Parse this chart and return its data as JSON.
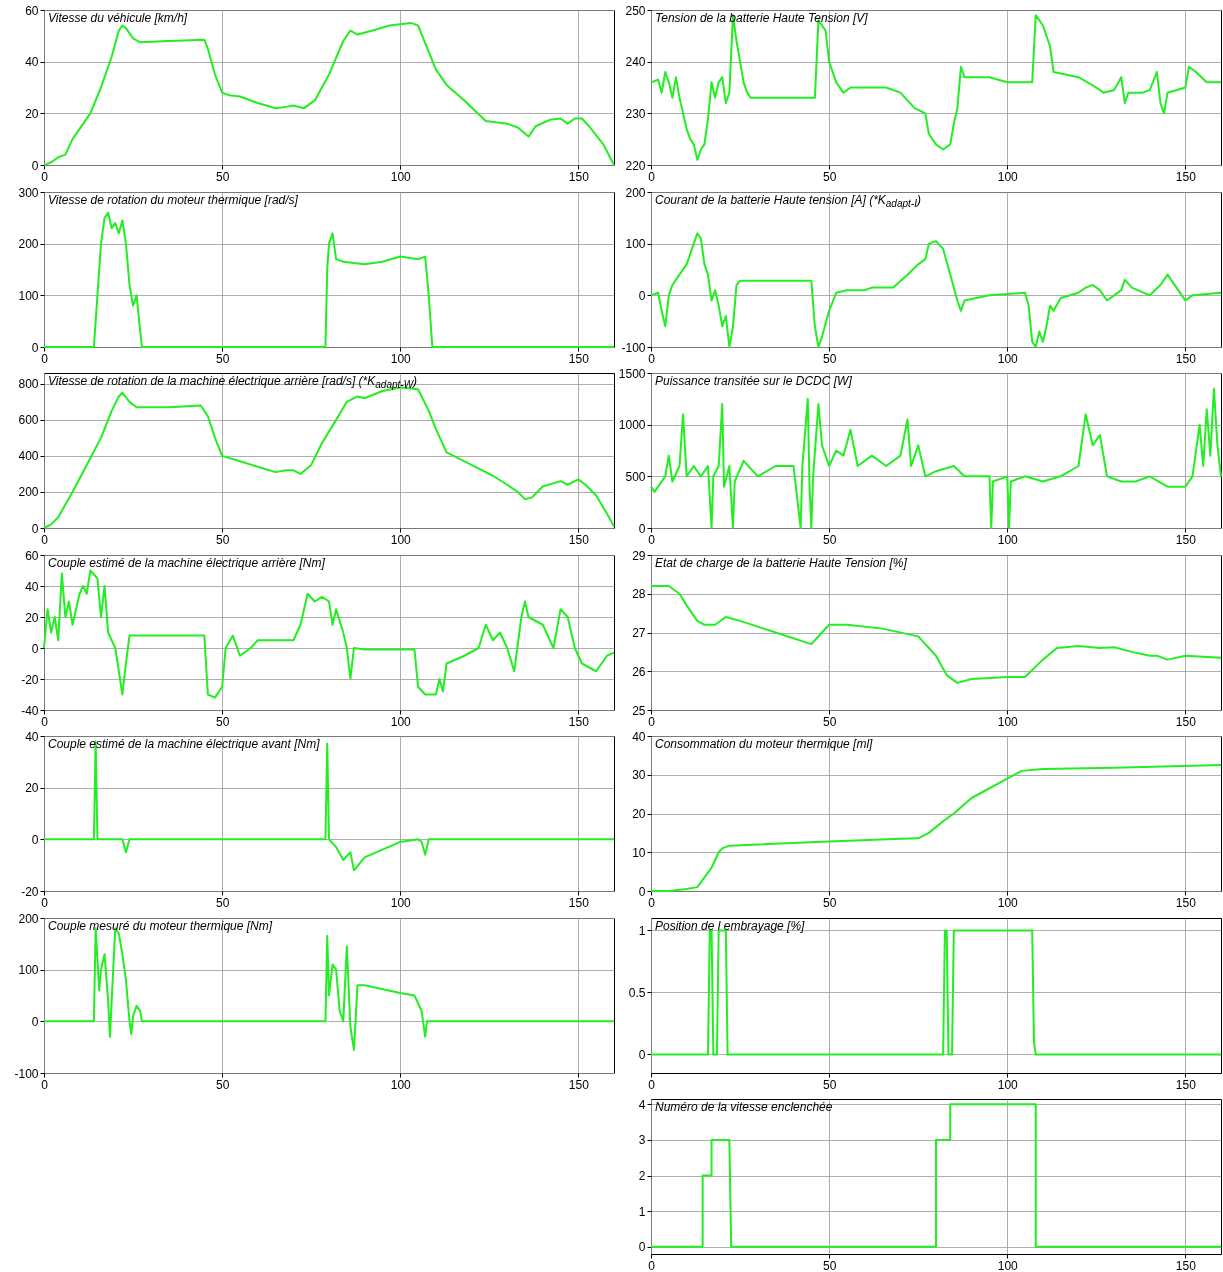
{
  "chart_data": [
    {
      "type": "line",
      "title": "Vitesse du véhicule [km/h]",
      "color": "#22ee22",
      "xlim": [
        0,
        160
      ],
      "xticks": [
        0,
        50,
        100,
        150
      ],
      "ylim": [
        0,
        60
      ],
      "yticks": [
        0,
        20,
        40,
        60
      ],
      "grid": true,
      "x": [
        0,
        2,
        4,
        6,
        8,
        10,
        13,
        16,
        19,
        21,
        22,
        23,
        25,
        27,
        35,
        45,
        46,
        48,
        50,
        52,
        55,
        60,
        65,
        68,
        70,
        73,
        76,
        80,
        84,
        86,
        88,
        92,
        97,
        103,
        105,
        110,
        113,
        118,
        124,
        130,
        133,
        136,
        138,
        142,
        145,
        147,
        149,
        151,
        153,
        157,
        160
      ],
      "values": [
        0,
        1,
        3,
        4,
        10,
        14,
        20,
        30,
        42,
        52,
        54,
        53,
        49,
        47.5,
        48,
        48.5,
        45,
        35,
        28,
        27,
        26.5,
        24,
        22,
        22.5,
        23,
        22,
        25,
        35,
        48,
        52,
        50.5,
        52,
        54,
        55,
        54,
        37,
        31,
        25,
        17,
        16,
        14.5,
        11,
        15,
        17.5,
        18,
        16,
        18,
        18,
        15,
        8,
        0
      ]
    },
    {
      "type": "line",
      "title": "Tension de la batterie Haute Tension [V]",
      "color": "#22ee22",
      "xlim": [
        0,
        160
      ],
      "xticks": [
        0,
        50,
        100,
        150
      ],
      "ylim": [
        220,
        250
      ],
      "yticks": [
        220,
        230,
        240,
        250
      ],
      "grid": true,
      "x": [
        0,
        2,
        3,
        4,
        5,
        6,
        7,
        8,
        9,
        10,
        11,
        12,
        13,
        14,
        15,
        16,
        17,
        18,
        19,
        20,
        21,
        22,
        23,
        24,
        25,
        26,
        27,
        28,
        35,
        45,
        46,
        47,
        48,
        49,
        50,
        52,
        54,
        56,
        60,
        66,
        70,
        74,
        77,
        78,
        80,
        82,
        84,
        85,
        86,
        87,
        88,
        95,
        100,
        105,
        107,
        108,
        110,
        112,
        113,
        120,
        125,
        127,
        130,
        132,
        133,
        134,
        138,
        140,
        142,
        143,
        144,
        145,
        150,
        151,
        153,
        156,
        160
      ],
      "values": [
        236,
        236.5,
        234,
        238,
        236,
        233,
        237,
        233,
        230,
        227,
        225,
        224,
        221,
        223,
        224,
        229,
        236,
        233,
        236,
        237,
        232,
        234,
        249,
        244,
        240,
        236,
        234,
        233,
        233,
        233,
        233,
        248,
        247,
        246,
        240,
        236,
        234,
        235,
        235,
        235,
        234,
        231,
        230,
        226,
        224,
        223,
        224,
        228,
        231,
        239,
        237,
        237,
        236,
        236,
        236,
        249,
        247,
        243,
        238,
        237,
        235,
        234,
        234.5,
        237,
        232,
        234,
        234,
        234.5,
        238,
        232,
        230,
        234,
        235,
        239,
        238,
        236,
        236
      ]
    },
    {
      "type": "line",
      "title": "Vitesse de rotation du moteur thermique [rad/s]",
      "color": "#22ee22",
      "xlim": [
        0,
        160
      ],
      "xticks": [
        0,
        50,
        100,
        150
      ],
      "ylim": [
        0,
        300
      ],
      "yticks": [
        0,
        100,
        200,
        300
      ],
      "grid": true,
      "x": [
        0,
        14,
        15,
        16,
        17,
        18,
        19,
        20,
        21,
        22,
        23,
        24,
        25,
        26,
        27,
        27.5,
        79,
        79.5,
        80,
        81,
        82,
        84,
        90,
        95,
        100,
        105,
        107,
        108,
        109,
        160
      ],
      "values": [
        0,
        0,
        100,
        200,
        250,
        260,
        230,
        240,
        220,
        245,
        200,
        120,
        80,
        100,
        30,
        0,
        0,
        150,
        200,
        220,
        170,
        165,
        160,
        165,
        175,
        170,
        175,
        100,
        0,
        0
      ]
    },
    {
      "type": "line",
      "title": "Courant de la batterie Haute tension [A] (*K$_{adapt-I}$)",
      "color": "#22ee22",
      "xlim": [
        0,
        160
      ],
      "xticks": [
        0,
        50,
        100,
        150
      ],
      "ylim": [
        -100,
        200
      ],
      "yticks": [
        -100,
        0,
        100,
        200
      ],
      "grid": true,
      "x": [
        0,
        2,
        3,
        4,
        5,
        6,
        8,
        10,
        12,
        13,
        14,
        15,
        16,
        17,
        18,
        19,
        20,
        21,
        22,
        23,
        24,
        25,
        35,
        45,
        46,
        47,
        48,
        50,
        52,
        55,
        60,
        62,
        68,
        72,
        75,
        77,
        78,
        80,
        82,
        84,
        86,
        87,
        88,
        95,
        105,
        106,
        107,
        108,
        109,
        110,
        111,
        112,
        113,
        115,
        120,
        122,
        124,
        126,
        128,
        130,
        132,
        133,
        135,
        140,
        143,
        145,
        146,
        148,
        150,
        152,
        160
      ],
      "values": [
        0,
        5,
        -30,
        -60,
        0,
        20,
        40,
        60,
        100,
        120,
        110,
        60,
        40,
        -10,
        10,
        -20,
        -60,
        -40,
        -100,
        -60,
        20,
        28,
        28,
        28,
        -60,
        -100,
        -80,
        -30,
        5,
        10,
        10,
        15,
        15,
        40,
        60,
        70,
        100,
        105,
        90,
        40,
        -10,
        -30,
        -10,
        0,
        5,
        -20,
        -90,
        -100,
        -70,
        -90,
        -60,
        -20,
        -30,
        -5,
        5,
        15,
        20,
        10,
        -10,
        0,
        10,
        30,
        15,
        0,
        20,
        40,
        30,
        10,
        -10,
        0,
        5
      ]
    },
    {
      "type": "line",
      "title": "Vitesse de rotation de la machine électrique arrière [rad/s] (*K$_{adapt-W}$)",
      "color": "#22ee22",
      "xlim": [
        0,
        160
      ],
      "xticks": [
        0,
        50,
        100,
        150
      ],
      "ylim": [
        0,
        860
      ],
      "yticks": [
        0,
        200,
        400,
        600,
        800
      ],
      "grid": true,
      "x": [
        0,
        2,
        4,
        8,
        12,
        16,
        19,
        21,
        22,
        24,
        26,
        35,
        44,
        46,
        48,
        50,
        55,
        60,
        65,
        68,
        70,
        72,
        75,
        78,
        82,
        85,
        88,
        90,
        95,
        100,
        105,
        108,
        110,
        113,
        120,
        126,
        130,
        133,
        135,
        137,
        140,
        145,
        147,
        150,
        152,
        155,
        158,
        160
      ],
      "values": [
        0,
        20,
        60,
        200,
        350,
        500,
        650,
        730,
        750,
        700,
        670,
        670,
        680,
        620,
        500,
        400,
        370,
        340,
        310,
        320,
        320,
        300,
        350,
        470,
        600,
        700,
        730,
        720,
        760,
        780,
        770,
        650,
        550,
        420,
        350,
        290,
        240,
        200,
        160,
        170,
        230,
        260,
        240,
        270,
        240,
        180,
        80,
        10
      ]
    },
    {
      "type": "line",
      "title": "Puissance transitée sur le DCDC [W]",
      "color": "#22ee22",
      "xlim": [
        0,
        160
      ],
      "xticks": [
        0,
        50,
        100,
        150
      ],
      "ylim": [
        0,
        1500
      ],
      "yticks": [
        0,
        500,
        1000,
        1500
      ],
      "grid": true,
      "x": [
        0,
        1,
        2,
        4,
        5,
        6,
        8,
        9,
        10,
        12,
        14,
        16,
        17,
        17.5,
        19,
        20,
        20.5,
        22,
        23,
        23.5,
        26,
        30,
        35,
        40,
        42,
        42.5,
        44,
        44.5,
        45,
        45.5,
        47,
        48,
        50,
        52,
        54,
        56,
        58,
        62,
        66,
        70,
        72,
        73,
        75,
        77,
        80,
        85,
        88,
        90,
        95,
        95.5,
        96,
        100,
        100.5,
        101,
        105,
        110,
        115,
        120,
        122,
        124,
        126,
        128,
        132,
        136,
        140,
        145,
        150,
        152,
        154,
        155,
        156,
        157,
        158,
        159,
        160
      ],
      "values": [
        400,
        350,
        400,
        500,
        700,
        450,
        600,
        1100,
        500,
        600,
        500,
        600,
        0,
        500,
        600,
        1200,
        400,
        600,
        0,
        450,
        650,
        500,
        600,
        600,
        0,
        600,
        1250,
        400,
        0,
        500,
        1200,
        800,
        600,
        750,
        700,
        950,
        600,
        700,
        600,
        700,
        1050,
        600,
        800,
        500,
        550,
        600,
        500,
        500,
        500,
        0,
        450,
        500,
        0,
        450,
        500,
        450,
        500,
        600,
        1100,
        800,
        900,
        500,
        450,
        450,
        500,
        400,
        400,
        500,
        1000,
        600,
        1150,
        700,
        1350,
        800,
        500
      ]
    },
    {
      "type": "line",
      "title": "Couple estimé de la machine électrique arrière [Nm]",
      "color": "#22ee22",
      "xlim": [
        0,
        160
      ],
      "xticks": [
        0,
        50,
        100,
        150
      ],
      "ylim": [
        -40,
        60
      ],
      "yticks": [
        -40,
        -20,
        0,
        20,
        40,
        60
      ],
      "grid": true,
      "x": [
        0,
        1,
        2,
        3,
        4,
        5,
        6,
        7,
        8,
        10,
        11,
        12,
        13,
        15,
        16,
        17,
        18,
        20,
        21,
        22,
        23,
        24,
        35,
        45,
        46,
        48,
        50,
        51,
        53,
        55,
        58,
        60,
        70,
        72,
        74,
        76,
        78,
        80,
        81,
        82,
        84,
        85,
        86,
        87,
        90,
        100,
        104,
        105,
        107,
        110,
        111,
        112,
        113,
        118,
        122,
        124,
        126,
        128,
        130,
        132,
        134,
        135,
        136,
        140,
        143,
        145,
        147,
        149,
        151,
        155,
        158,
        160
      ],
      "values": [
        0,
        25,
        10,
        20,
        5,
        48,
        20,
        30,
        15,
        35,
        40,
        35,
        50,
        45,
        20,
        40,
        10,
        0,
        -15,
        -30,
        -10,
        8,
        8,
        8,
        -30,
        -32,
        -25,
        0,
        8,
        -5,
        0,
        5,
        5,
        15,
        35,
        30,
        33,
        30,
        15,
        25,
        10,
        0,
        -20,
        0,
        -1,
        -1,
        -1,
        -25,
        -30,
        -30,
        -20,
        -28,
        -10,
        -5,
        0,
        15,
        5,
        10,
        0,
        -15,
        20,
        30,
        20,
        15,
        0,
        25,
        20,
        0,
        -10,
        -15,
        -5,
        -3
      ]
    },
    {
      "type": "line",
      "title": "Etat de charge de la batterie Haute Tension [%]",
      "color": "#22ee22",
      "xlim": [
        0,
        160
      ],
      "xticks": [
        0,
        50,
        100,
        150
      ],
      "ylim": [
        25,
        29
      ],
      "yticks": [
        25,
        26,
        27,
        28,
        29
      ],
      "grid": true,
      "x": [
        0,
        5,
        8,
        10,
        13,
        15,
        18,
        21,
        25,
        35,
        45,
        48,
        50,
        55,
        65,
        75,
        80,
        83,
        86,
        90,
        100,
        105,
        110,
        114,
        120,
        126,
        130,
        135,
        140,
        142,
        145,
        150,
        160
      ],
      "values": [
        28.2,
        28.2,
        28,
        27.7,
        27.3,
        27.2,
        27.2,
        27.4,
        27.3,
        27,
        26.7,
        27,
        27.2,
        27.2,
        27.1,
        26.9,
        26.4,
        25.9,
        25.7,
        25.8,
        25.85,
        25.85,
        26.3,
        26.6,
        26.65,
        26.6,
        26.62,
        26.5,
        26.4,
        26.4,
        26.3,
        26.4,
        26.35
      ]
    },
    {
      "type": "line",
      "title": "Couple estimé de la machine électrique avant [Nm]",
      "color": "#22ee22",
      "xlim": [
        0,
        160
      ],
      "xticks": [
        0,
        50,
        100,
        150
      ],
      "ylim": [
        -20,
        40
      ],
      "yticks": [
        -20,
        0,
        20,
        40
      ],
      "grid": true,
      "x": [
        0,
        14,
        14.5,
        15,
        22,
        23,
        24,
        79,
        79.5,
        80,
        82,
        84,
        86,
        87,
        90,
        95,
        100,
        105,
        106,
        107,
        108,
        160
      ],
      "values": [
        0,
        0,
        38,
        0,
        0,
        -5,
        0,
        0,
        37,
        0,
        -3,
        -8,
        -5,
        -12,
        -7,
        -4,
        -1,
        0,
        -1,
        -6,
        0,
        0
      ]
    },
    {
      "type": "line",
      "title": "Consommation du moteur thermique [ml]",
      "color": "#22ee22",
      "xlim": [
        0,
        160
      ],
      "xticks": [
        0,
        50,
        100,
        150
      ],
      "ylim": [
        0,
        40
      ],
      "yticks": [
        0,
        10,
        20,
        30,
        40
      ],
      "grid": true,
      "x": [
        0,
        5,
        10,
        13,
        15,
        17,
        19,
        20,
        22,
        30,
        50,
        70,
        75,
        78,
        82,
        85,
        90,
        100,
        104,
        110,
        130,
        160
      ],
      "values": [
        0,
        0,
        0.5,
        1,
        3.5,
        6,
        10,
        11,
        11.7,
        12,
        12.8,
        13.5,
        13.6,
        15,
        18,
        20,
        24,
        29,
        31,
        31.5,
        31.8,
        32.5
      ]
    },
    {
      "type": "line",
      "title": "Couple mesuré du moteur thermique [Nm]",
      "color": "#22ee22",
      "xlim": [
        0,
        160
      ],
      "xticks": [
        0,
        50,
        100,
        150
      ],
      "ylim": [
        -100,
        200
      ],
      "yticks": [
        -100,
        0,
        100,
        200
      ],
      "grid": true,
      "x": [
        0,
        14,
        14.5,
        15.5,
        16,
        17,
        18,
        18.5,
        19,
        20,
        21,
        22,
        23,
        24,
        24.5,
        25,
        26,
        27,
        27.5,
        79,
        79.5,
        80,
        81,
        82,
        83,
        84,
        85,
        86,
        87,
        88,
        90,
        100,
        104,
        106,
        107,
        107.5,
        160
      ],
      "values": [
        0,
        0,
        180,
        60,
        100,
        130,
        40,
        -30,
        40,
        180,
        170,
        130,
        80,
        0,
        -25,
        10,
        30,
        20,
        0,
        0,
        165,
        50,
        110,
        100,
        20,
        0,
        145,
        -10,
        -55,
        70,
        70,
        55,
        50,
        20,
        -30,
        0,
        0
      ]
    },
    {
      "type": "line",
      "title": "Position de l embrayage [%]",
      "color": "#22ee22",
      "xlim": [
        0,
        160
      ],
      "xticks": [
        0,
        50,
        100,
        150
      ],
      "ylim": [
        -0.15,
        1.1
      ],
      "yticks": [
        0,
        0.5,
        1
      ],
      "grid": true,
      "x": [
        0,
        16,
        16.5,
        17,
        17.5,
        18.5,
        19,
        21,
        21.5,
        82,
        82.5,
        83,
        83.5,
        84.5,
        85,
        107,
        107.5,
        108,
        160
      ],
      "values": [
        0,
        0,
        1,
        1,
        0,
        0,
        1,
        1,
        0,
        0,
        1,
        1,
        0,
        0,
        1,
        1,
        0.1,
        0,
        0
      ]
    },
    {
      "type": "line",
      "title": "Numéro de la vitesse enclenchée",
      "color": "#22ee22",
      "xlim": [
        0,
        160
      ],
      "xticks": [
        0,
        50,
        100,
        150
      ],
      "ylim": [
        -0.2,
        4.15
      ],
      "yticks": [
        0,
        1,
        2,
        3,
        4
      ],
      "grid": true,
      "x": [
        0,
        14.5,
        14.5,
        17,
        17,
        22,
        22.5,
        80,
        80,
        84,
        84,
        108,
        108,
        160
      ],
      "values": [
        0,
        0,
        2,
        2,
        3,
        3,
        0,
        0,
        3,
        3,
        4,
        4,
        0,
        0
      ]
    }
  ]
}
